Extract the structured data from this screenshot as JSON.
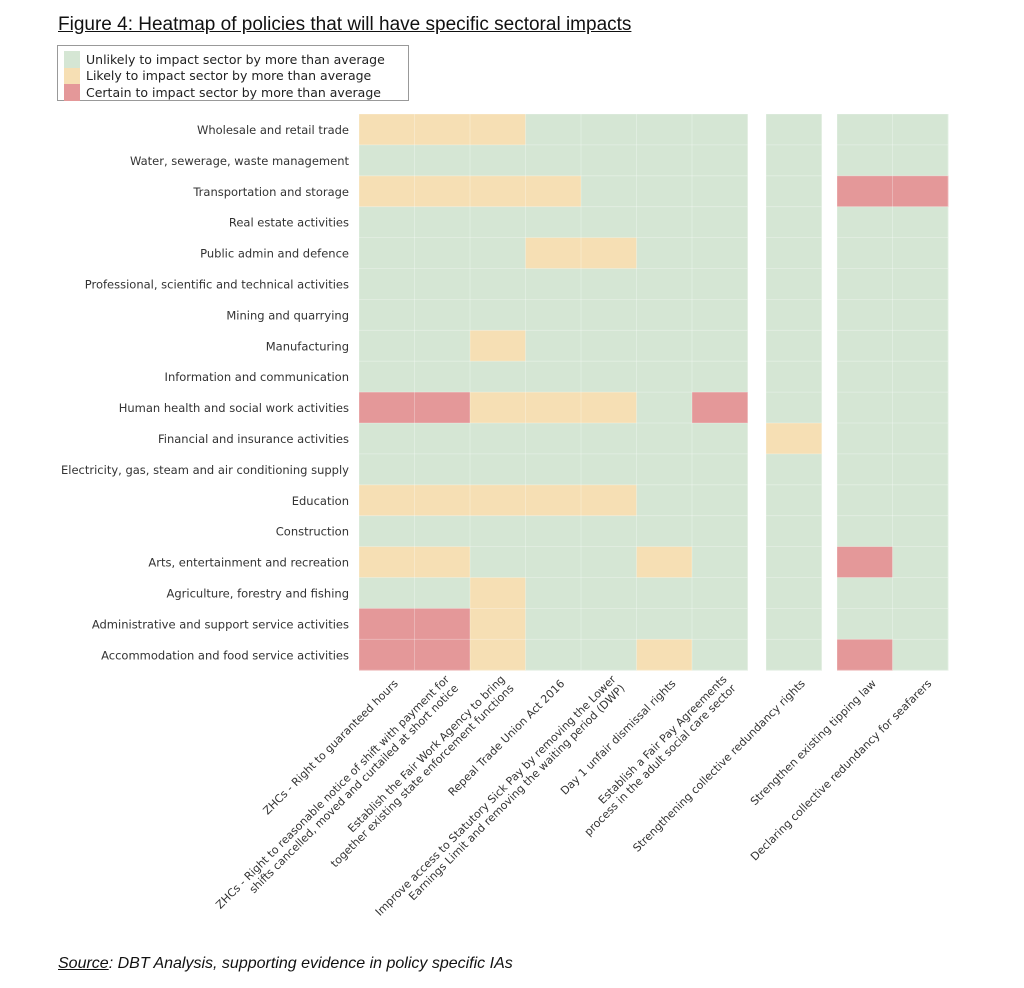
{
  "figure": {
    "title": "Figure 4: Heatmap of policies that will have specific sectoral impacts",
    "source_label": "Source",
    "source_text": ": DBT Analysis, supporting evidence in policy specific IAs"
  },
  "legend": [
    {
      "label": "Unlikely to impact sector by more than average",
      "level": 0
    },
    {
      "label": "Likely to impact sector by more than average",
      "level": 1
    },
    {
      "label": "Certain to impact sector by more than average",
      "level": 2
    }
  ],
  "colors": {
    "0": "#d5e6d4",
    "1": "#f6dfb4",
    "2": "#e49899",
    "grid": "#e4ece4"
  },
  "chart_data": {
    "type": "heatmap",
    "title": "Figure 4: Heatmap of policies that will have specific sectoral impacts",
    "value_levels": {
      "0": "Unlikely to impact sector by more than average",
      "1": "Likely to impact sector by more than average",
      "2": "Certain to impact sector by more than average"
    },
    "sectors": [
      "Wholesale and retail trade",
      "Water, sewerage, waste management",
      "Transportation and storage",
      "Real estate activities",
      "Public admin and defence",
      "Professional, scientific and technical activities",
      "Mining and quarrying",
      "Manufacturing",
      "Information and communication",
      "Human health and social work activities",
      "Financial and insurance activities",
      "Electricity, gas, steam and air conditioning supply",
      "Education",
      "Construction",
      "Arts, entertainment and recreation",
      "Agriculture, forestry and fishing",
      "Administrative and support service activities",
      "Accommodation and food service activities"
    ],
    "panels": [
      {
        "policies": [
          "ZHCs - Right to guaranteed hours",
          "ZHCs - Right to reasonable notice of shift with payment for shifts cancelled, moved and curtailed at short notice",
          "Establish the Fair Work Agency to bring together existing state enforcement functions",
          "Repeal Trade Union Act 2016",
          "Improve access to Statutory Sick Pay by removing the Lower Earnings Limit and removing the waiting period (DWP)",
          "Day 1 unfair dismissal rights",
          "Establish a Fair Pay Agreements process in the adult social care sector"
        ],
        "values": [
          [
            1,
            1,
            1,
            0,
            0,
            0,
            0
          ],
          [
            0,
            0,
            0,
            0,
            0,
            0,
            0
          ],
          [
            1,
            1,
            1,
            1,
            0,
            0,
            0
          ],
          [
            0,
            0,
            0,
            0,
            0,
            0,
            0
          ],
          [
            0,
            0,
            0,
            1,
            1,
            0,
            0
          ],
          [
            0,
            0,
            0,
            0,
            0,
            0,
            0
          ],
          [
            0,
            0,
            0,
            0,
            0,
            0,
            0
          ],
          [
            0,
            0,
            1,
            0,
            0,
            0,
            0
          ],
          [
            0,
            0,
            0,
            0,
            0,
            0,
            0
          ],
          [
            2,
            2,
            1,
            1,
            1,
            0,
            2
          ],
          [
            0,
            0,
            0,
            0,
            0,
            0,
            0
          ],
          [
            0,
            0,
            0,
            0,
            0,
            0,
            0
          ],
          [
            1,
            1,
            1,
            1,
            1,
            0,
            0
          ],
          [
            0,
            0,
            0,
            0,
            0,
            0,
            0
          ],
          [
            1,
            1,
            0,
            0,
            0,
            1,
            0
          ],
          [
            0,
            0,
            1,
            0,
            0,
            0,
            0
          ],
          [
            2,
            2,
            1,
            0,
            0,
            0,
            0
          ],
          [
            2,
            2,
            1,
            0,
            0,
            1,
            0
          ]
        ]
      },
      {
        "policies": [
          "Strengthening collective redundancy rights"
        ],
        "values": [
          [
            0
          ],
          [
            0
          ],
          [
            0
          ],
          [
            0
          ],
          [
            0
          ],
          [
            0
          ],
          [
            0
          ],
          [
            0
          ],
          [
            0
          ],
          [
            0
          ],
          [
            1
          ],
          [
            0
          ],
          [
            0
          ],
          [
            0
          ],
          [
            0
          ],
          [
            0
          ],
          [
            0
          ],
          [
            0
          ]
        ]
      },
      {
        "policies": [
          "Strengthen existing tipping law",
          "Declaring collective redundancy for seafarers"
        ],
        "values": [
          [
            0,
            0
          ],
          [
            0,
            0
          ],
          [
            2,
            2
          ],
          [
            0,
            0
          ],
          [
            0,
            0
          ],
          [
            0,
            0
          ],
          [
            0,
            0
          ],
          [
            0,
            0
          ],
          [
            0,
            0
          ],
          [
            0,
            0
          ],
          [
            0,
            0
          ],
          [
            0,
            0
          ],
          [
            0,
            0
          ],
          [
            0,
            0
          ],
          [
            2,
            0
          ],
          [
            0,
            0
          ],
          [
            0,
            0
          ],
          [
            2,
            0
          ]
        ]
      }
    ]
  }
}
